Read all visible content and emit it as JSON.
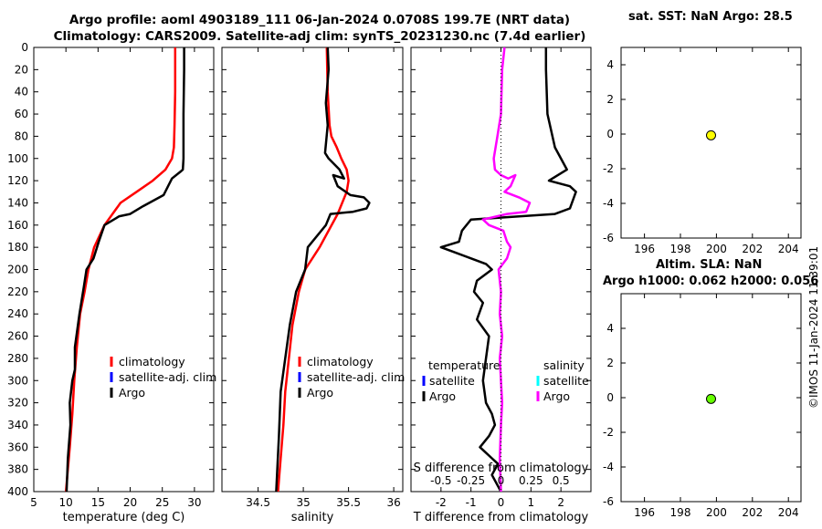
{
  "header": {
    "line1": "Argo profile: aoml 4903189_111 06-Jan-2024 0.0708S 199.7E (NRT data)",
    "line2": "Climatology: CARS2009. Satellite-adj clim: synTS_20231230.nc (7.4d earlier)"
  },
  "sst_panel": {
    "title": "sat. SST: NaN Argo: 28.5"
  },
  "sla_panel": {
    "title_line1": "Altim. SLA: NaN",
    "title_line2": "Argo h1000: 0.062 h2000: 0.056"
  },
  "copyright": "©IMOS 11-Jan-2024 11:39:01",
  "colors": {
    "argo": "#000000",
    "climatology": "#ff0000",
    "satellite_clim": "#0000ff",
    "satellite_sal": "#00ffff",
    "argo_sal_diff": "#ff00ff",
    "sst_marker": "#ffff00",
    "sla_marker": "#66ff00"
  },
  "chart_data": [
    {
      "type": "line",
      "name": "temperature-profile",
      "xlabel": "temperature (deg C)",
      "xlim": [
        5,
        33
      ],
      "ylim": [
        400,
        0
      ],
      "xticks": [
        5,
        10,
        15,
        20,
        25,
        30
      ],
      "yticks": [
        0,
        20,
        40,
        60,
        80,
        100,
        120,
        140,
        160,
        180,
        200,
        220,
        240,
        260,
        280,
        300,
        320,
        340,
        360,
        380,
        400
      ],
      "legend": [
        "climatology",
        "satellite-adj. clim",
        "Argo"
      ],
      "series": [
        {
          "name": "climatology",
          "x": [
            27.0,
            27.0,
            26.9,
            26.8,
            26.5,
            25.5,
            23.5,
            21.0,
            18.5,
            16.0,
            14.4,
            13.5,
            12.9,
            12.2,
            11.7,
            11.3,
            11.0,
            10.6,
            10.3,
            10.0
          ],
          "y": [
            0,
            40,
            70,
            90,
            100,
            110,
            120,
            130,
            140,
            160,
            180,
            200,
            220,
            240,
            270,
            300,
            330,
            360,
            380,
            400
          ]
        },
        {
          "name": "Argo",
          "x": [
            28.4,
            28.4,
            28.3,
            28.3,
            28.2,
            27.8,
            26.5,
            25.9,
            25.2,
            22.0,
            20.0,
            18.3,
            16.0,
            15.1,
            14.3,
            13.2,
            12.8,
            12.1,
            11.4,
            11.4,
            11.0,
            10.6,
            10.7,
            10.3,
            10.1
          ],
          "y": [
            0,
            20,
            60,
            100,
            110,
            112,
            118,
            125,
            133,
            143,
            150,
            152,
            160,
            175,
            190,
            200,
            215,
            240,
            270,
            290,
            300,
            320,
            340,
            370,
            400
          ]
        }
      ]
    },
    {
      "type": "line",
      "name": "salinity-profile",
      "xlabel": "salinity",
      "xlim": [
        34.1,
        36.1
      ],
      "ylim": [
        400,
        0
      ],
      "xticks": [
        34.5,
        35,
        35.5,
        36
      ],
      "legend": [
        "climatology",
        "satellite-adj. clim",
        "Argo"
      ],
      "series": [
        {
          "name": "climatology",
          "x": [
            35.26,
            35.27,
            35.29,
            35.31,
            35.37,
            35.42,
            35.48,
            35.5,
            35.48,
            35.38,
            35.18,
            35.02,
            34.95,
            34.88,
            34.84,
            34.8,
            34.78,
            34.75,
            34.72
          ],
          "y": [
            0,
            40,
            70,
            80,
            90,
            100,
            110,
            120,
            130,
            150,
            180,
            200,
            220,
            250,
            280,
            310,
            340,
            370,
            400
          ]
        },
        {
          "name": "Argo",
          "x": [
            35.27,
            35.28,
            35.25,
            35.27,
            35.24,
            35.28,
            35.4,
            35.45,
            35.33,
            35.38,
            35.52,
            35.67,
            35.73,
            35.7,
            35.55,
            35.3,
            35.25,
            35.05,
            35.02,
            34.92,
            34.85,
            34.8,
            34.75,
            34.73,
            34.7
          ],
          "y": [
            0,
            20,
            50,
            70,
            95,
            100,
            110,
            118,
            115,
            125,
            133,
            135,
            140,
            145,
            148,
            150,
            160,
            180,
            200,
            220,
            250,
            280,
            310,
            350,
            400
          ]
        }
      ]
    },
    {
      "type": "line",
      "name": "difference-profile",
      "xlabel": "T difference from climatology",
      "xlabel_top": "S difference from climatology",
      "xlim": [
        -3,
        3
      ],
      "ylim": [
        400,
        0
      ],
      "xticks": [
        -2,
        -1,
        0,
        1,
        2
      ],
      "xticks_s": [
        -0.5,
        -0.25,
        0,
        0.25,
        0.5
      ],
      "xticklabels_s": [
        "-0.5",
        "-0.25",
        "0",
        "0.25",
        "0.5"
      ],
      "legend_t_header": "temperature",
      "legend_s_header": "salinity",
      "legend_t": [
        "satellite",
        "Argo"
      ],
      "legend_s": [
        "satellite",
        "Argo"
      ],
      "series": [
        {
          "name": "T diff (Argo)",
          "x": [
            1.5,
            1.5,
            1.55,
            1.8,
            2.2,
            1.6,
            2.3,
            2.5,
            2.3,
            1.8,
            -1.0,
            -1.3,
            -1.4,
            -2.0,
            -1.5,
            -1.0,
            -0.5,
            -0.3,
            -0.8,
            -0.9,
            -0.6,
            -0.8,
            -0.4,
            -0.5,
            -0.6,
            -0.5,
            -0.3,
            -0.2,
            -0.4,
            -0.7,
            -0.5,
            -0.3,
            -0.1,
            -0.3,
            -0.1,
            0.0
          ],
          "y": [
            0,
            20,
            60,
            90,
            110,
            120,
            125,
            130,
            145,
            150,
            155,
            165,
            175,
            180,
            185,
            190,
            195,
            200,
            210,
            220,
            230,
            245,
            260,
            280,
            300,
            320,
            330,
            340,
            350,
            360,
            365,
            370,
            375,
            385,
            395,
            400
          ]
        },
        {
          "name": "S diff (Argo)",
          "x": [
            0.03,
            0.01,
            0.0,
            -0.03,
            -0.06,
            -0.05,
            0.0,
            0.06,
            0.12,
            0.08,
            0.03,
            0.15,
            0.24,
            0.21,
            0.05,
            -0.15,
            -0.1,
            0.02,
            0.05,
            0.08,
            0.05,
            -0.02,
            0.0,
            -0.01,
            0.01,
            -0.01,
            0.0,
            0.01,
            0.0,
            -0.01,
            0.0
          ],
          "y": [
            0,
            20,
            60,
            80,
            100,
            110,
            115,
            118,
            115,
            125,
            130,
            135,
            140,
            148,
            150,
            155,
            160,
            165,
            175,
            180,
            190,
            200,
            220,
            240,
            260,
            280,
            300,
            320,
            340,
            370,
            400
          ]
        }
      ]
    },
    {
      "type": "scatter",
      "name": "sst-position",
      "xlim": [
        194.7,
        204.7
      ],
      "ylim": [
        -6,
        5
      ],
      "xticks": [
        196,
        198,
        200,
        202,
        204
      ],
      "yticks": [
        -6,
        -4,
        -2,
        0,
        2,
        4
      ],
      "x": [
        199.7
      ],
      "y": [
        -0.07
      ]
    },
    {
      "type": "scatter",
      "name": "sla-position",
      "xlim": [
        194.7,
        204.7
      ],
      "ylim": [
        -6,
        6
      ],
      "xticks": [
        196,
        198,
        200,
        202,
        204
      ],
      "yticks": [
        -6,
        -4,
        -2,
        0,
        2,
        4
      ],
      "x": [
        199.7
      ],
      "y": [
        -0.07
      ]
    }
  ]
}
